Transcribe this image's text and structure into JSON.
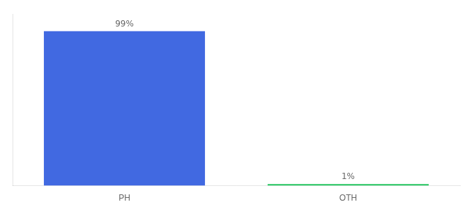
{
  "chart_data": {
    "type": "bar",
    "categories": [
      "PH",
      "OTH"
    ],
    "values": [
      99,
      1
    ],
    "colors": [
      "#4169e1",
      "#22c55e"
    ],
    "value_labels": [
      "99%",
      "1%"
    ],
    "data_labels": true,
    "ylim": [
      0,
      110
    ],
    "grid": false,
    "tick_labels": "x"
  }
}
